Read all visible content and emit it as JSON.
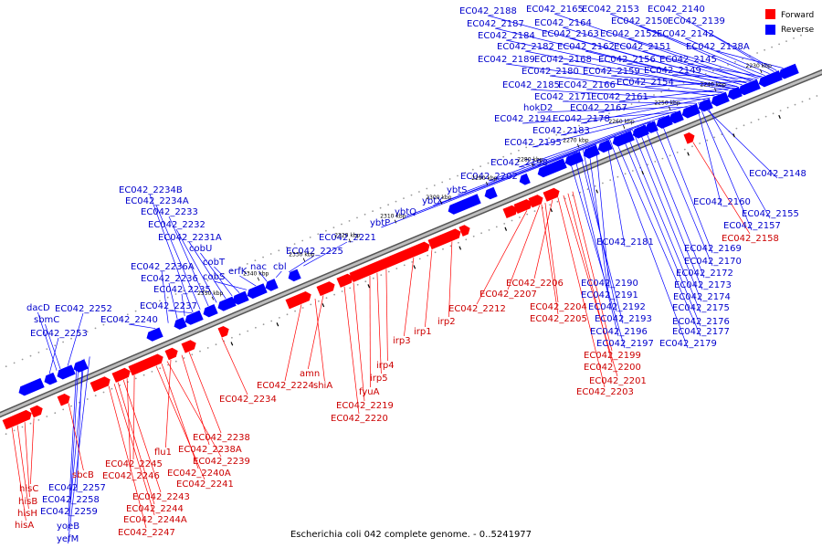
{
  "caption": "Escherichia coli 042 complete genome. - 0..5241977",
  "legend": [
    {
      "label": "Forward",
      "color": "#ff0000"
    },
    {
      "label": "Reverse",
      "color": "#0000ff"
    }
  ],
  "colors": {
    "forward": "#ff0000",
    "reverse": "#0000ff",
    "leader_forward": "#cc0000",
    "leader_reverse": "#0000cc",
    "backbone": "#808080"
  },
  "ticks": [
    {
      "kbp": 2220,
      "label": "2220 kbp"
    },
    {
      "kbp": 2230,
      "label": "2230 kbp"
    },
    {
      "kbp": 2240,
      "label": "2240 kbp"
    },
    {
      "kbp": 2250,
      "label": "2250 kbp"
    },
    {
      "kbp": 2260,
      "label": "2260 kbp"
    },
    {
      "kbp": 2270,
      "label": "2270 kbp"
    },
    {
      "kbp": 2280,
      "label": "2280 kbp"
    },
    {
      "kbp": 2290,
      "label": "2290 kbp"
    },
    {
      "kbp": 2300,
      "label": "2300 kbp"
    },
    {
      "kbp": 2310,
      "label": "2310 kbp"
    },
    {
      "kbp": 2320,
      "label": "2320 kbp"
    },
    {
      "kbp": 2330,
      "label": "2330 kbp"
    },
    {
      "kbp": 2340,
      "label": "2340 kbp"
    },
    {
      "kbp": 2350,
      "label": "2350 kbp"
    }
  ],
  "reverse_labels": [
    "EC042_2188",
    "EC042_2165",
    "EC042_2153",
    "EC042_2140",
    "EC042_2187",
    "EC042_2164",
    "EC042_2150",
    "EC042_2139",
    "EC042_2184",
    "EC042_2163",
    "EC042_2152",
    "EC042_2142",
    "EC042_2182",
    "EC042_2162",
    "EC042_2151",
    "EC042_2138A",
    "EC042_2189",
    "EC042_2168",
    "EC042_2156",
    "EC042_2145",
    "EC042_2180",
    "EC042_2159",
    "EC042_2149",
    "EC042_2185",
    "EC042_2166",
    "EC042_2154",
    "EC042_2171",
    "EC042_2161",
    "hokD2",
    "EC042_2167",
    "EC042_2194",
    "EC042_2178",
    "EC042_2183",
    "EC042_2195",
    "EC042_2198",
    "EC042_2202",
    "ybtS",
    "ybtX",
    "ybtQ",
    "ybtP",
    "EC042_2148",
    "EC042_2160",
    "EC042_2155",
    "EC042_2157",
    "EC042_2181",
    "EC042_2169",
    "EC042_2170",
    "EC042_2172",
    "EC042_2173",
    "EC042_2174",
    "EC042_2175",
    "EC042_2176",
    "EC042_2177",
    "EC042_2179",
    "EC042_2190",
    "EC042_2191",
    "EC042_2192",
    "EC042_2193",
    "EC042_2196",
    "EC042_2197",
    "EC042_2234B",
    "EC042_2234A",
    "EC042_2233",
    "EC042_2232",
    "EC042_2231A",
    "cobU",
    "cobT",
    "cobS",
    "erfK",
    "nac",
    "cbl",
    "EC042_2225",
    "EC042_2221",
    "EC042_2236A",
    "EC042_2236",
    "EC042_2235",
    "EC042_2237",
    "dacD",
    "EC042_2252",
    "sbmC",
    "EC042_2240",
    "EC042_2253",
    "EC042_2257",
    "EC042_2258",
    "EC042_2259",
    "yoeB",
    "yefM"
  ],
  "forward_labels": [
    "EC042_2158",
    "EC042_2206",
    "EC042_2207",
    "EC042_2212",
    "EC042_2204",
    "EC042_2205",
    "EC042_2199",
    "EC042_2200",
    "EC042_2201",
    "EC042_2203",
    "irp2",
    "irp1",
    "irp3",
    "irp4",
    "irp5",
    "fyuA",
    "EC042_2219",
    "EC042_2220",
    "amn",
    "shiA",
    "EC042_2224",
    "EC042_2234",
    "EC042_2238",
    "EC042_2238A",
    "flu1",
    "EC042_2239",
    "EC042_2245",
    "EC042_2240A",
    "EC042_2246",
    "EC042_2241",
    "EC042_2243",
    "EC042_2244",
    "EC042_2244A",
    "EC042_2247",
    "sbcB",
    "hisC",
    "hisB",
    "hisH",
    "hisA"
  ]
}
